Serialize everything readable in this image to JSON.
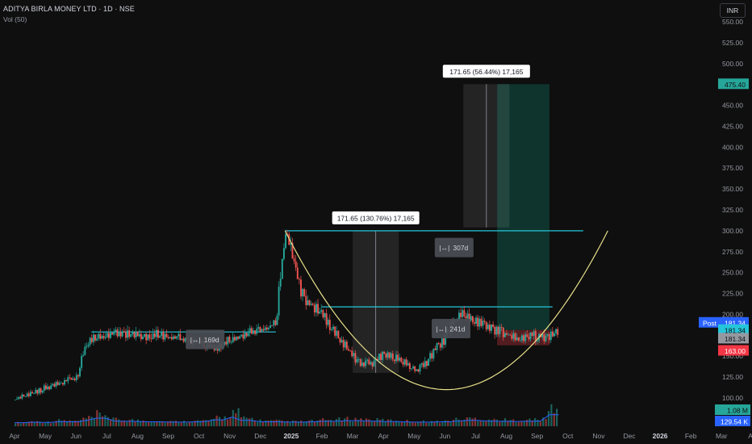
{
  "header": {
    "title": "ADITYA BIRLA MONEY LTD · 1D · NSE",
    "volume_label": "Vol (50)"
  },
  "currency_button": "INR",
  "colors": {
    "background": "#0f0f0f",
    "up": "#26a69a",
    "down": "#ef5350",
    "accent_line": "#26c6da",
    "curve": "#e8e08a",
    "target_zone": "#0e3b32",
    "stop_zone": "#5a1f22"
  },
  "chart_data": {
    "type": "candlestick",
    "y_axis": {
      "ticks": [
        100,
        125,
        150,
        175,
        200,
        225,
        250,
        275,
        300,
        325,
        350,
        375,
        400,
        425,
        450,
        475,
        500,
        525,
        550
      ],
      "tick_labels": [
        "100.00",
        "125.00",
        "150.00",
        "175.00",
        "200.00",
        "225.00",
        "250.00",
        "275.00",
        "300.00",
        "325.00",
        "350.00",
        "375.00",
        "400.00",
        "425.00",
        "450.00",
        "475.00",
        "500.00",
        "525.00",
        "550.00"
      ]
    },
    "x_axis": {
      "labels": [
        "Apr",
        "May",
        "Jun",
        "Jul",
        "Aug",
        "Sep",
        "Oct",
        "Nov",
        "Dec",
        "2025",
        "Feb",
        "Mar",
        "Apr",
        "May",
        "Jun",
        "Jul",
        "Aug",
        "Sep",
        "Oct",
        "Nov",
        "Dec",
        "2026",
        "Feb",
        "Mar",
        "Ap"
      ],
      "bold": [
        "2025",
        "2026"
      ]
    },
    "price_path": [
      [
        0,
        98
      ],
      [
        0.5,
        106
      ],
      [
        1,
        112
      ],
      [
        1.5,
        118
      ],
      [
        2,
        124
      ],
      [
        2.3,
        165
      ],
      [
        2.6,
        172
      ],
      [
        3,
        176
      ],
      [
        3.5,
        178
      ],
      [
        4,
        174
      ],
      [
        4.5,
        176
      ],
      [
        5,
        173
      ],
      [
        5.5,
        170
      ],
      [
        6,
        166
      ],
      [
        6.5,
        160
      ],
      [
        7,
        170
      ],
      [
        7.5,
        176
      ],
      [
        8,
        182
      ],
      [
        8.5,
        190
      ],
      [
        8.6,
        240
      ],
      [
        8.8,
        300
      ],
      [
        9,
        270
      ],
      [
        9.3,
        225
      ],
      [
        9.6,
        212
      ],
      [
        10,
        200
      ],
      [
        10.4,
        178
      ],
      [
        10.8,
        160
      ],
      [
        11.2,
        140
      ],
      [
        11.6,
        142
      ],
      [
        12,
        152
      ],
      [
        12.4,
        148
      ],
      [
        12.8,
        140
      ],
      [
        13.1,
        133
      ],
      [
        13.4,
        144
      ],
      [
        13.7,
        160
      ],
      [
        14,
        172
      ],
      [
        14.2,
        188
      ],
      [
        14.5,
        203
      ],
      [
        14.8,
        196
      ],
      [
        15.2,
        188
      ],
      [
        15.6,
        182
      ],
      [
        16,
        176
      ],
      [
        16.4,
        170
      ],
      [
        16.8,
        175
      ],
      [
        17.2,
        172
      ],
      [
        17.5,
        176
      ],
      [
        17.7,
        181.34
      ]
    ],
    "volume_profile": [
      0.2,
      0.3,
      0.25,
      0.4,
      0.35,
      0.6,
      1.0,
      0.5,
      0.45,
      0.4,
      0.35,
      0.3,
      0.3,
      0.35,
      0.4,
      0.7,
      1.2,
      0.6,
      0.4,
      0.35,
      0.3,
      0.3,
      0.35,
      0.45,
      0.5,
      0.55,
      0.5,
      0.45,
      0.4,
      0.35,
      0.3,
      0.3,
      0.35,
      0.5,
      0.6,
      0.5,
      0.45,
      0.4,
      0.45,
      0.5,
      1.6
    ],
    "horizontal_levels": [
      {
        "name": "ath-resistance",
        "value": 300,
        "x_from": 8.8,
        "x_to": 18.5
      },
      {
        "name": "cup-rim",
        "value": 209,
        "x_from": 10.0,
        "x_to": 17.5
      },
      {
        "name": "base-resistance",
        "value": 179,
        "x_from": 2.5,
        "x_to": 8.5
      }
    ],
    "cup_curve": {
      "x_from": 8.8,
      "x_to": 19.3,
      "top": 300,
      "bottom": 110
    },
    "position": {
      "entry": 181.34,
      "target": 475.4,
      "stop": 163.0,
      "x_from": 15.7,
      "x_to": 17.4
    },
    "measures": [
      {
        "label": "171.65 (130.76%) 17,165",
        "x_from": 11.0,
        "x_to": 12.5,
        "from": 130,
        "to": 300
      },
      {
        "label": "171.65 (56.44%) 17,165",
        "x_from": 14.6,
        "x_to": 16.1,
        "from": 304,
        "to": 475.4
      }
    ],
    "day_counts": [
      {
        "label": "169d",
        "x": 6.2,
        "y": 170
      },
      {
        "label": "307d",
        "x": 14.3,
        "y": 280
      },
      {
        "label": "241d",
        "x": 14.2,
        "y": 183
      }
    ],
    "price_badges": [
      {
        "label": "Post",
        "value": "181.34",
        "price": 190,
        "color": "#2962ff",
        "text_color": "#ffffff"
      },
      {
        "label": "",
        "value": "181.34",
        "price": 181.34,
        "color": "#26c6da",
        "text_color": "#0f0f0f"
      },
      {
        "label": "",
        "value": "181.34",
        "price": 171,
        "color": "#9598a1",
        "text_color": "#0f0f0f"
      },
      {
        "label": "",
        "value": "163.00",
        "price": 156.5,
        "color": "#f23645",
        "text_color": "#ffffff"
      },
      {
        "label": "",
        "value": "475.40",
        "price": 475.4,
        "color": "#26a69a",
        "text_color": "#0f0f0f"
      }
    ],
    "volume_badges": [
      {
        "value": "1.08 M",
        "color": "#26a69a",
        "text_color": "#0f0f0f",
        "pos": "upper"
      },
      {
        "value": "129.54 K",
        "color": "#2962ff",
        "text_color": "#ffffff",
        "pos": "lower"
      }
    ]
  }
}
